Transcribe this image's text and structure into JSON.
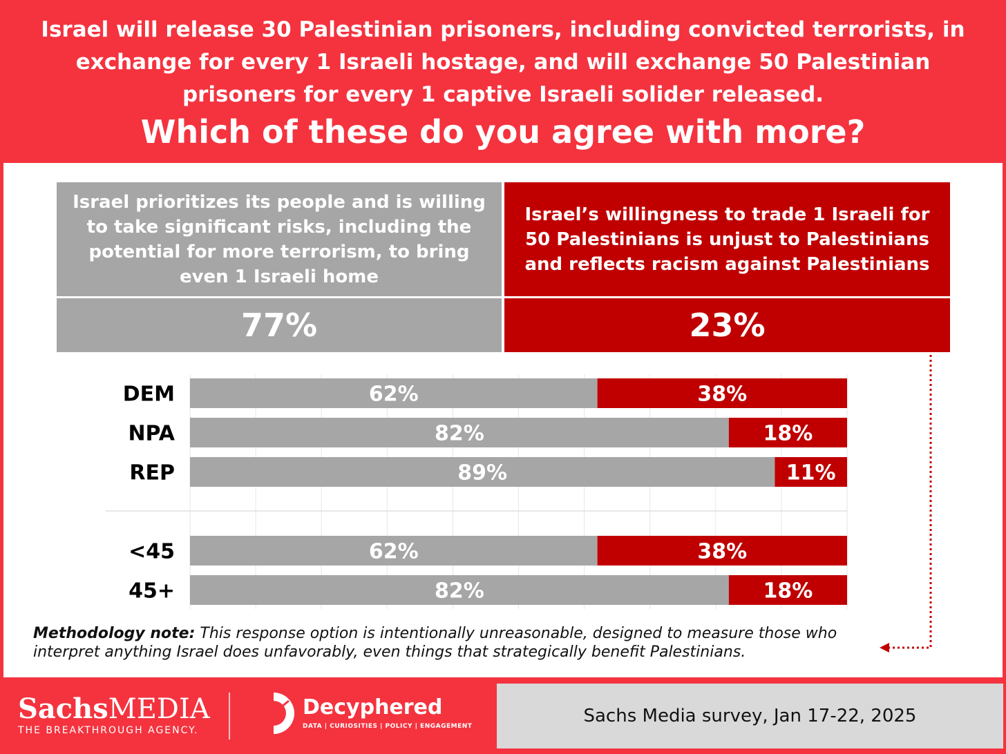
{
  "header": {
    "question": "Israel will release 30 Palestinian prisoners, including convicted terrorists, in exchange for every 1 Israeli hostage, and will exchange 50 Palestinian prisoners for every 1 captive Israeli solider released.",
    "prompt": "Which of these do you agree with more?"
  },
  "options": [
    {
      "label": "Israel prioritizes its people and is willing to take significant risks, including the potential for more terrorism, to bring even 1 Israeli home",
      "value": "77%",
      "color": "#a6a6a6"
    },
    {
      "label": "Israel’s willingness to trade 1 Israeli for 50 Palestinians is unjust to Palestinians and reflects racism against Palestinians",
      "value": "23%",
      "color": "#c00000"
    }
  ],
  "chart_data": {
    "type": "bar",
    "stacked": true,
    "orientation": "horizontal",
    "categories": [
      "DEM",
      "NPA",
      "REP",
      "<45",
      "45+"
    ],
    "series": [
      {
        "values": [
          62,
          82,
          89,
          62,
          82
        ],
        "labels": [
          "62%",
          "82%",
          "89%",
          "62%",
          "82%"
        ],
        "color": "#a6a6a6"
      },
      {
        "values": [
          38,
          18,
          11,
          38,
          18
        ],
        "labels": [
          "38%",
          "18%",
          "11%",
          "38%",
          "18%"
        ],
        "color": "#c00000"
      }
    ],
    "xlim": [
      0,
      100
    ],
    "grid": true
  },
  "methodology": {
    "label": "Methodology note:",
    "text": " This response option is intentionally unreasonable, designed to measure those who interpret anything Israel does unfavorably, even things that strategically benefit Palestinians."
  },
  "footer": {
    "logo1_bold": "Sachs",
    "logo1_rest": "MEDIA",
    "logo1_tagline": "THE BREAKTHROUGH AGENCY.",
    "logo2_name": "Decyphered",
    "logo2_tagline": "DATA | CURIOSITIES | POLICY | ENGAGEMENT",
    "source": "Sachs Media survey, Jan 17-22, 2025"
  }
}
